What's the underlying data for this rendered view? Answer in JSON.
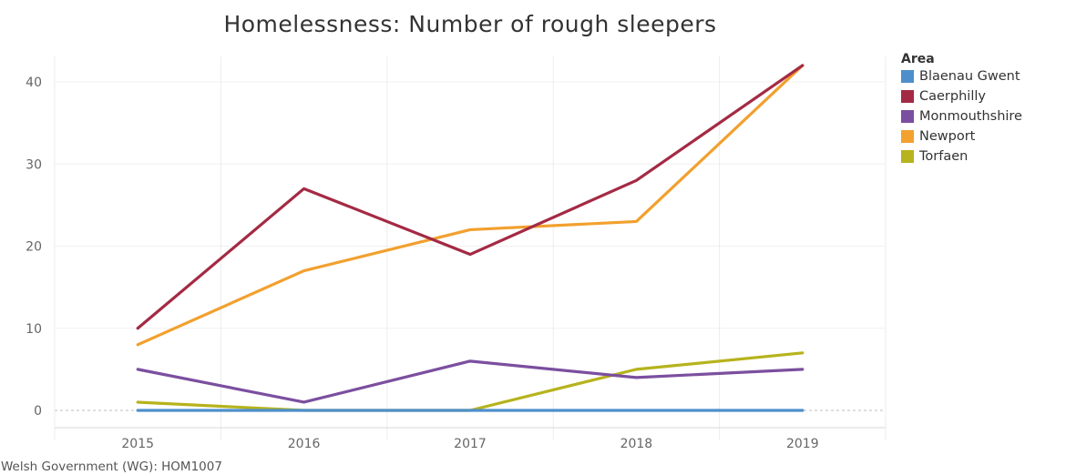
{
  "chart_data": {
    "type": "line",
    "title": "Homelessness: Number of rough sleepers",
    "xlabel": "",
    "ylabel": "",
    "categories": [
      "2015",
      "2016",
      "2017",
      "2018",
      "2019"
    ],
    "ylim": [
      -2,
      45
    ],
    "yticks": [
      "0",
      "10",
      "20",
      "30",
      "40"
    ],
    "grid": true,
    "legend_title": "Area",
    "legend_position": "right",
    "series": [
      {
        "name": "Blaenau Gwent",
        "color": "#4e8fcb",
        "values": [
          0,
          0,
          0,
          0,
          0
        ]
      },
      {
        "name": "Caerphilly",
        "color": "#a42a44",
        "values": [
          10,
          27,
          19,
          28,
          42
        ]
      },
      {
        "name": "Monmouthshire",
        "color": "#7b4f9f",
        "values": [
          5,
          1,
          6,
          4,
          5
        ]
      },
      {
        "name": "Newport",
        "color": "#f2a02e",
        "values": [
          8,
          17,
          22,
          23,
          42
        ]
      },
      {
        "name": "Torfaen",
        "color": "#b6b31d",
        "values": [
          1,
          0,
          0,
          5,
          7
        ]
      }
    ],
    "source": "Welsh Government (WG): HOM1007"
  }
}
